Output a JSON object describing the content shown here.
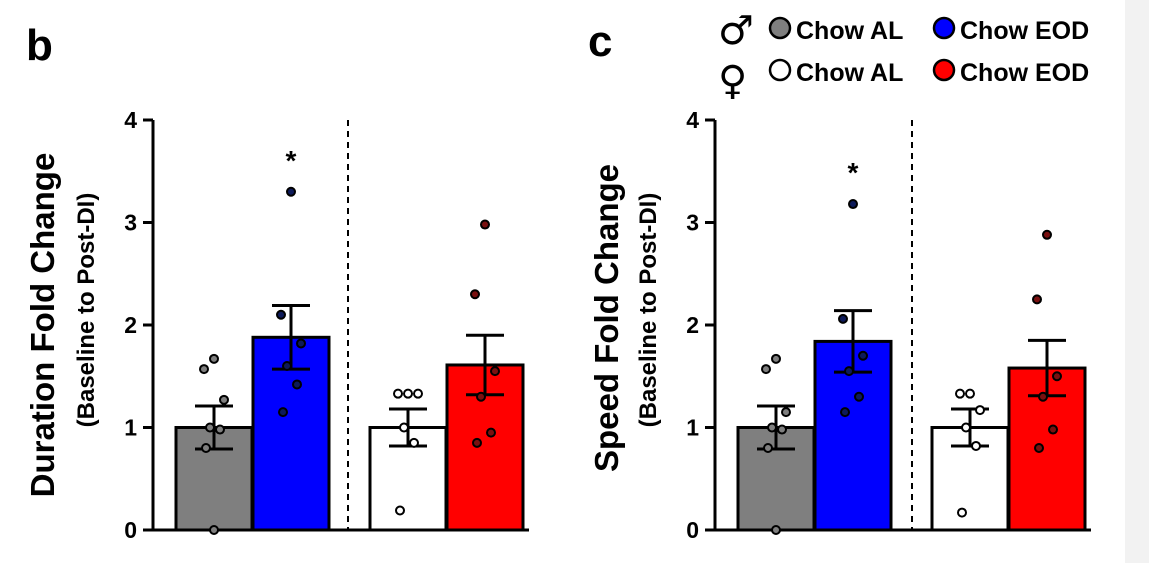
{
  "colors": {
    "male_chow_al": "#7f7f7f",
    "male_chow_eod": "#0000ff",
    "female_chow_al": "#ffffff",
    "female_chow_eod": "#ff0000",
    "male_eod_points": "#0d1a5a",
    "female_eod_points": "#7a1010",
    "outline": "#000000"
  },
  "legend": {
    "male_symbol": "♂",
    "female_symbol": "♀",
    "items": [
      {
        "label": "Chow AL",
        "sex": "male"
      },
      {
        "label": "Chow EOD",
        "sex": "male"
      },
      {
        "label": "Chow AL",
        "sex": "female"
      },
      {
        "label": "Chow EOD",
        "sex": "female"
      }
    ]
  },
  "chart_data": [
    {
      "type": "bar",
      "panel_label": "b",
      "ylabel": "Duration Fold Change",
      "ylabel_sub": "(Baseline to Post-DI)",
      "ylim": [
        0,
        4
      ],
      "yticks": [
        "0",
        "1",
        "2",
        "3",
        "4"
      ],
      "categories": [
        "Chow AL",
        "Chow EOD",
        "Chow AL",
        "Chow EOD"
      ],
      "groups": [
        {
          "name": "Chow AL",
          "sex": "male",
          "value": 1.0,
          "sem": 0.21,
          "points": [
            1.67,
            1.57,
            1.27,
            1.0,
            0.98,
            0.8,
            0.0
          ]
        },
        {
          "name": "Chow EOD",
          "sex": "male",
          "value": 1.88,
          "sem": 0.31,
          "annotation": "*",
          "points": [
            3.3,
            2.1,
            1.82,
            1.6,
            1.42,
            1.15
          ]
        },
        {
          "name": "Chow AL",
          "sex": "female",
          "value": 1.0,
          "sem": 0.18,
          "points": [
            1.33,
            1.33,
            1.33,
            1.0,
            0.85,
            0.19
          ]
        },
        {
          "name": "Chow EOD",
          "sex": "female",
          "value": 1.61,
          "sem": 0.29,
          "points": [
            2.98,
            2.3,
            1.55,
            1.3,
            0.95,
            0.85
          ]
        }
      ]
    },
    {
      "type": "bar",
      "panel_label": "c",
      "ylabel": "Speed Fold Change",
      "ylabel_sub": "(Baseline to  Post-DI)",
      "ylim": [
        0,
        4
      ],
      "yticks": [
        "0",
        "1",
        "2",
        "3",
        "4"
      ],
      "categories": [
        "Chow AL",
        "Chow EOD",
        "Chow AL",
        "Chow EOD"
      ],
      "groups": [
        {
          "name": "Chow AL",
          "sex": "male",
          "value": 1.0,
          "sem": 0.21,
          "points": [
            1.67,
            1.57,
            1.15,
            1.0,
            0.98,
            0.8,
            0.0
          ]
        },
        {
          "name": "Chow EOD",
          "sex": "male",
          "value": 1.84,
          "sem": 0.3,
          "annotation": "*",
          "points": [
            3.18,
            2.06,
            1.7,
            1.55,
            1.3,
            1.15
          ]
        },
        {
          "name": "Chow AL",
          "sex": "female",
          "value": 1.0,
          "sem": 0.18,
          "points": [
            1.33,
            1.33,
            1.17,
            1.0,
            0.82,
            0.17
          ]
        },
        {
          "name": "Chow EOD",
          "sex": "female",
          "value": 1.58,
          "sem": 0.27,
          "points": [
            2.88,
            2.25,
            1.5,
            1.3,
            0.98,
            0.8
          ]
        }
      ]
    }
  ]
}
